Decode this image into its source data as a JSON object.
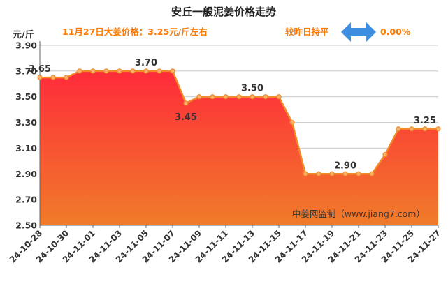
{
  "title": "安丘一般泥姜价格走势",
  "unit_label": "元/斤",
  "subtitle": "11月27日大姜价格：3.25元/斤左右",
  "compare_text": "较昨日持平",
  "change_text": "0.00%",
  "watermark": "中姜网监制（www.jiang7.com）",
  "colors": {
    "line": "#f08a2a",
    "marker_fill": "#f6b36a",
    "fill_top": "#ff2b3a",
    "fill_bottom": "#f07c2a",
    "arrow": "#3d8ee0",
    "accent_text": "#ff7a00"
  },
  "chart_data": {
    "type": "area",
    "title": "安丘一般泥姜价格走势",
    "ylabel": "元/斤",
    "ylim": [
      2.5,
      3.9
    ],
    "yticks": [
      "3.90",
      "3.70",
      "3.50",
      "3.30",
      "3.10",
      "2.90",
      "2.70",
      "2.50"
    ],
    "xtick_labels": [
      "24-10-28",
      "24-10-30",
      "24-11-01",
      "24-11-03",
      "24-11-05",
      "24-11-07",
      "24-11-09",
      "24-11-11",
      "24-11-13",
      "24-11-15",
      "24-11-17",
      "24-11-19",
      "24-11-21",
      "24-11-23",
      "24-11-25",
      "24-11-27"
    ],
    "x": [
      "24-10-28",
      "24-10-29",
      "24-10-30",
      "24-10-31",
      "24-11-01",
      "24-11-02",
      "24-11-03",
      "24-11-04",
      "24-11-05",
      "24-11-06",
      "24-11-07",
      "24-11-08",
      "24-11-09",
      "24-11-10",
      "24-11-11",
      "24-11-12",
      "24-11-13",
      "24-11-14",
      "24-11-15",
      "24-11-16",
      "24-11-17",
      "24-11-18",
      "24-11-19",
      "24-11-20",
      "24-11-21",
      "24-11-22",
      "24-11-23",
      "24-11-24",
      "24-11-25",
      "24-11-26",
      "24-11-27"
    ],
    "values": [
      3.65,
      3.65,
      3.65,
      3.7,
      3.7,
      3.7,
      3.7,
      3.7,
      3.7,
      3.7,
      3.7,
      3.45,
      3.5,
      3.5,
      3.5,
      3.5,
      3.5,
      3.5,
      3.5,
      3.3,
      2.9,
      2.9,
      2.9,
      2.9,
      2.9,
      2.9,
      3.05,
      3.25,
      3.25,
      3.25,
      3.25
    ],
    "data_labels": [
      {
        "x": "24-10-28",
        "text": "3.65",
        "pos": "above"
      },
      {
        "x": "24-11-05",
        "text": "3.70",
        "pos": "above"
      },
      {
        "x": "24-11-08",
        "text": "3.45",
        "pos": "below"
      },
      {
        "x": "24-11-13",
        "text": "3.50",
        "pos": "above"
      },
      {
        "x": "24-11-20",
        "text": "2.90",
        "pos": "above"
      },
      {
        "x": "24-11-26",
        "text": "3.25",
        "pos": "above"
      }
    ],
    "grid": true,
    "grid_axis": "y"
  }
}
